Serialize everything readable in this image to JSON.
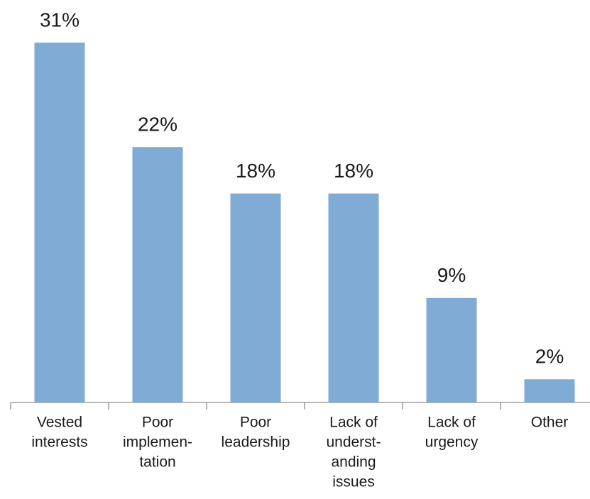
{
  "chart_data": {
    "type": "bar",
    "categories": [
      [
        "Vested",
        "interests"
      ],
      [
        "Poor",
        "implemen-",
        "tation"
      ],
      [
        "Poor",
        "leadership"
      ],
      [
        "Lack of",
        "underst-",
        "anding",
        "issues"
      ],
      [
        "Lack of",
        "urgency"
      ],
      [
        "Other"
      ]
    ],
    "values": [
      31,
      22,
      18,
      18,
      9,
      2
    ],
    "value_labels": [
      "31%",
      "22%",
      "18%",
      "18%",
      "9%",
      "2%"
    ],
    "color": "#7fabd4"
  }
}
